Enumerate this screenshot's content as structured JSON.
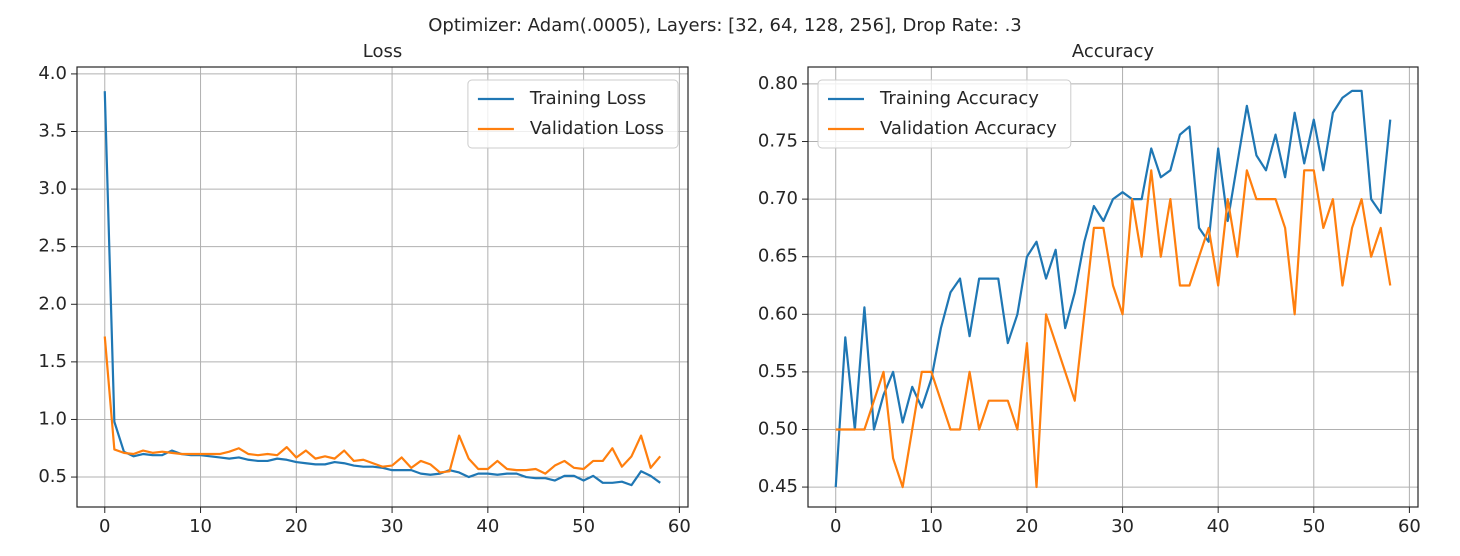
{
  "title": "Optimizer: Adam(.0005), Layers: [32, 64, 128, 256], Drop Rate: .3",
  "chart_data": [
    {
      "type": "line",
      "title": "Loss",
      "x": [
        0,
        1,
        2,
        3,
        4,
        5,
        6,
        7,
        8,
        9,
        10,
        11,
        12,
        13,
        14,
        15,
        16,
        17,
        18,
        19,
        20,
        21,
        22,
        23,
        24,
        25,
        26,
        27,
        28,
        29,
        30,
        31,
        32,
        33,
        34,
        35,
        36,
        37,
        38,
        39,
        40,
        41,
        42,
        43,
        44,
        45,
        46,
        47,
        48,
        49,
        50,
        51,
        52,
        53,
        54,
        55,
        56,
        57,
        58
      ],
      "series": [
        {
          "name": "Training Loss",
          "color": "#1f77b4",
          "values": [
            3.85,
            0.98,
            0.72,
            0.68,
            0.7,
            0.69,
            0.69,
            0.73,
            0.7,
            0.69,
            0.69,
            0.68,
            0.67,
            0.66,
            0.67,
            0.65,
            0.64,
            0.64,
            0.66,
            0.65,
            0.63,
            0.62,
            0.61,
            0.61,
            0.63,
            0.62,
            0.6,
            0.59,
            0.59,
            0.58,
            0.56,
            0.56,
            0.56,
            0.53,
            0.52,
            0.53,
            0.56,
            0.54,
            0.5,
            0.53,
            0.53,
            0.52,
            0.53,
            0.53,
            0.5,
            0.49,
            0.49,
            0.47,
            0.51,
            0.51,
            0.47,
            0.51,
            0.45,
            0.45,
            0.46,
            0.43,
            0.55,
            0.51,
            0.45
          ]
        },
        {
          "name": "Validation Loss",
          "color": "#ff7f0e",
          "values": [
            1.72,
            0.74,
            0.71,
            0.7,
            0.73,
            0.71,
            0.72,
            0.71,
            0.7,
            0.7,
            0.7,
            0.7,
            0.7,
            0.72,
            0.75,
            0.7,
            0.69,
            0.7,
            0.69,
            0.76,
            0.67,
            0.73,
            0.66,
            0.68,
            0.66,
            0.73,
            0.64,
            0.65,
            0.62,
            0.59,
            0.6,
            0.67,
            0.58,
            0.64,
            0.61,
            0.54,
            0.55,
            0.86,
            0.66,
            0.57,
            0.57,
            0.64,
            0.57,
            0.56,
            0.56,
            0.57,
            0.53,
            0.6,
            0.64,
            0.58,
            0.57,
            0.64,
            0.64,
            0.75,
            0.59,
            0.68,
            0.86,
            0.58,
            0.68
          ]
        }
      ],
      "xlim": [
        -2.9,
        60.9
      ],
      "ylim": [
        0.24,
        4.06
      ],
      "xticks": [
        0,
        10,
        20,
        30,
        40,
        50,
        60
      ],
      "yticks": [
        0.5,
        {
          "value": 1,
          "label": "1.0"
        },
        1.5,
        {
          "value": 2,
          "label": "2.0"
        },
        2.5,
        {
          "value": 3,
          "label": "3.0"
        },
        3.5,
        {
          "value": 4,
          "label": "4.0"
        }
      ],
      "grid": true,
      "legend": "upper-right"
    },
    {
      "type": "line",
      "title": "Accuracy",
      "x": [
        0,
        1,
        2,
        3,
        4,
        5,
        6,
        7,
        8,
        9,
        10,
        11,
        12,
        13,
        14,
        15,
        16,
        17,
        18,
        19,
        20,
        21,
        22,
        23,
        24,
        25,
        26,
        27,
        28,
        29,
        30,
        31,
        32,
        33,
        34,
        35,
        36,
        37,
        38,
        39,
        40,
        41,
        42,
        43,
        44,
        45,
        46,
        47,
        48,
        49,
        50,
        51,
        52,
        53,
        54,
        55,
        56,
        57,
        58
      ],
      "series": [
        {
          "name": "Training Accuracy",
          "color": "#1f77b4",
          "values": [
            0.45,
            0.58,
            0.5,
            0.606,
            0.5,
            0.53,
            0.55,
            0.506,
            0.537,
            0.519,
            0.544,
            0.588,
            0.619,
            0.631,
            0.581,
            0.631,
            0.631,
            0.631,
            0.575,
            0.6,
            0.65,
            0.663,
            0.631,
            0.656,
            0.588,
            0.619,
            0.663,
            0.694,
            0.681,
            0.7,
            0.706,
            0.7,
            0.7,
            0.744,
            0.719,
            0.725,
            0.756,
            0.763,
            0.675,
            0.663,
            0.744,
            0.681,
            0.731,
            0.781,
            0.738,
            0.725,
            0.756,
            0.719,
            0.775,
            0.731,
            0.769,
            0.725,
            0.775,
            0.788,
            0.794,
            0.794,
            0.7,
            0.688,
            0.769
          ]
        },
        {
          "name": "Validation Accuracy",
          "color": "#ff7f0e",
          "values": [
            0.5,
            0.5,
            0.5,
            0.5,
            0.525,
            0.55,
            0.475,
            0.45,
            0.5,
            0.55,
            0.55,
            0.525,
            0.5,
            0.5,
            0.55,
            0.5,
            0.525,
            0.525,
            0.525,
            0.5,
            0.575,
            0.45,
            0.6,
            0.575,
            0.55,
            0.525,
            0.6,
            0.675,
            0.675,
            0.625,
            0.6,
            0.7,
            0.65,
            0.725,
            0.65,
            0.7,
            0.625,
            0.625,
            0.65,
            0.675,
            0.625,
            0.7,
            0.65,
            0.725,
            0.7,
            0.7,
            0.7,
            0.675,
            0.6,
            0.725,
            0.725,
            0.675,
            0.7,
            0.625,
            0.675,
            0.7,
            0.65,
            0.675,
            0.625
          ]
        }
      ],
      "xlim": [
        -2.9,
        60.9
      ],
      "ylim": [
        0.4327,
        0.8147
      ],
      "xticks": [
        0,
        10,
        20,
        30,
        40,
        50,
        60
      ],
      "yticks": [
        0.45,
        {
          "value": 0.5,
          "label": "0.50"
        },
        0.55,
        {
          "value": 0.6,
          "label": "0.60"
        },
        0.65,
        {
          "value": 0.7,
          "label": "0.70"
        },
        0.75,
        {
          "value": 0.8,
          "label": "0.80"
        }
      ],
      "grid": true,
      "legend": "upper-left"
    }
  ]
}
